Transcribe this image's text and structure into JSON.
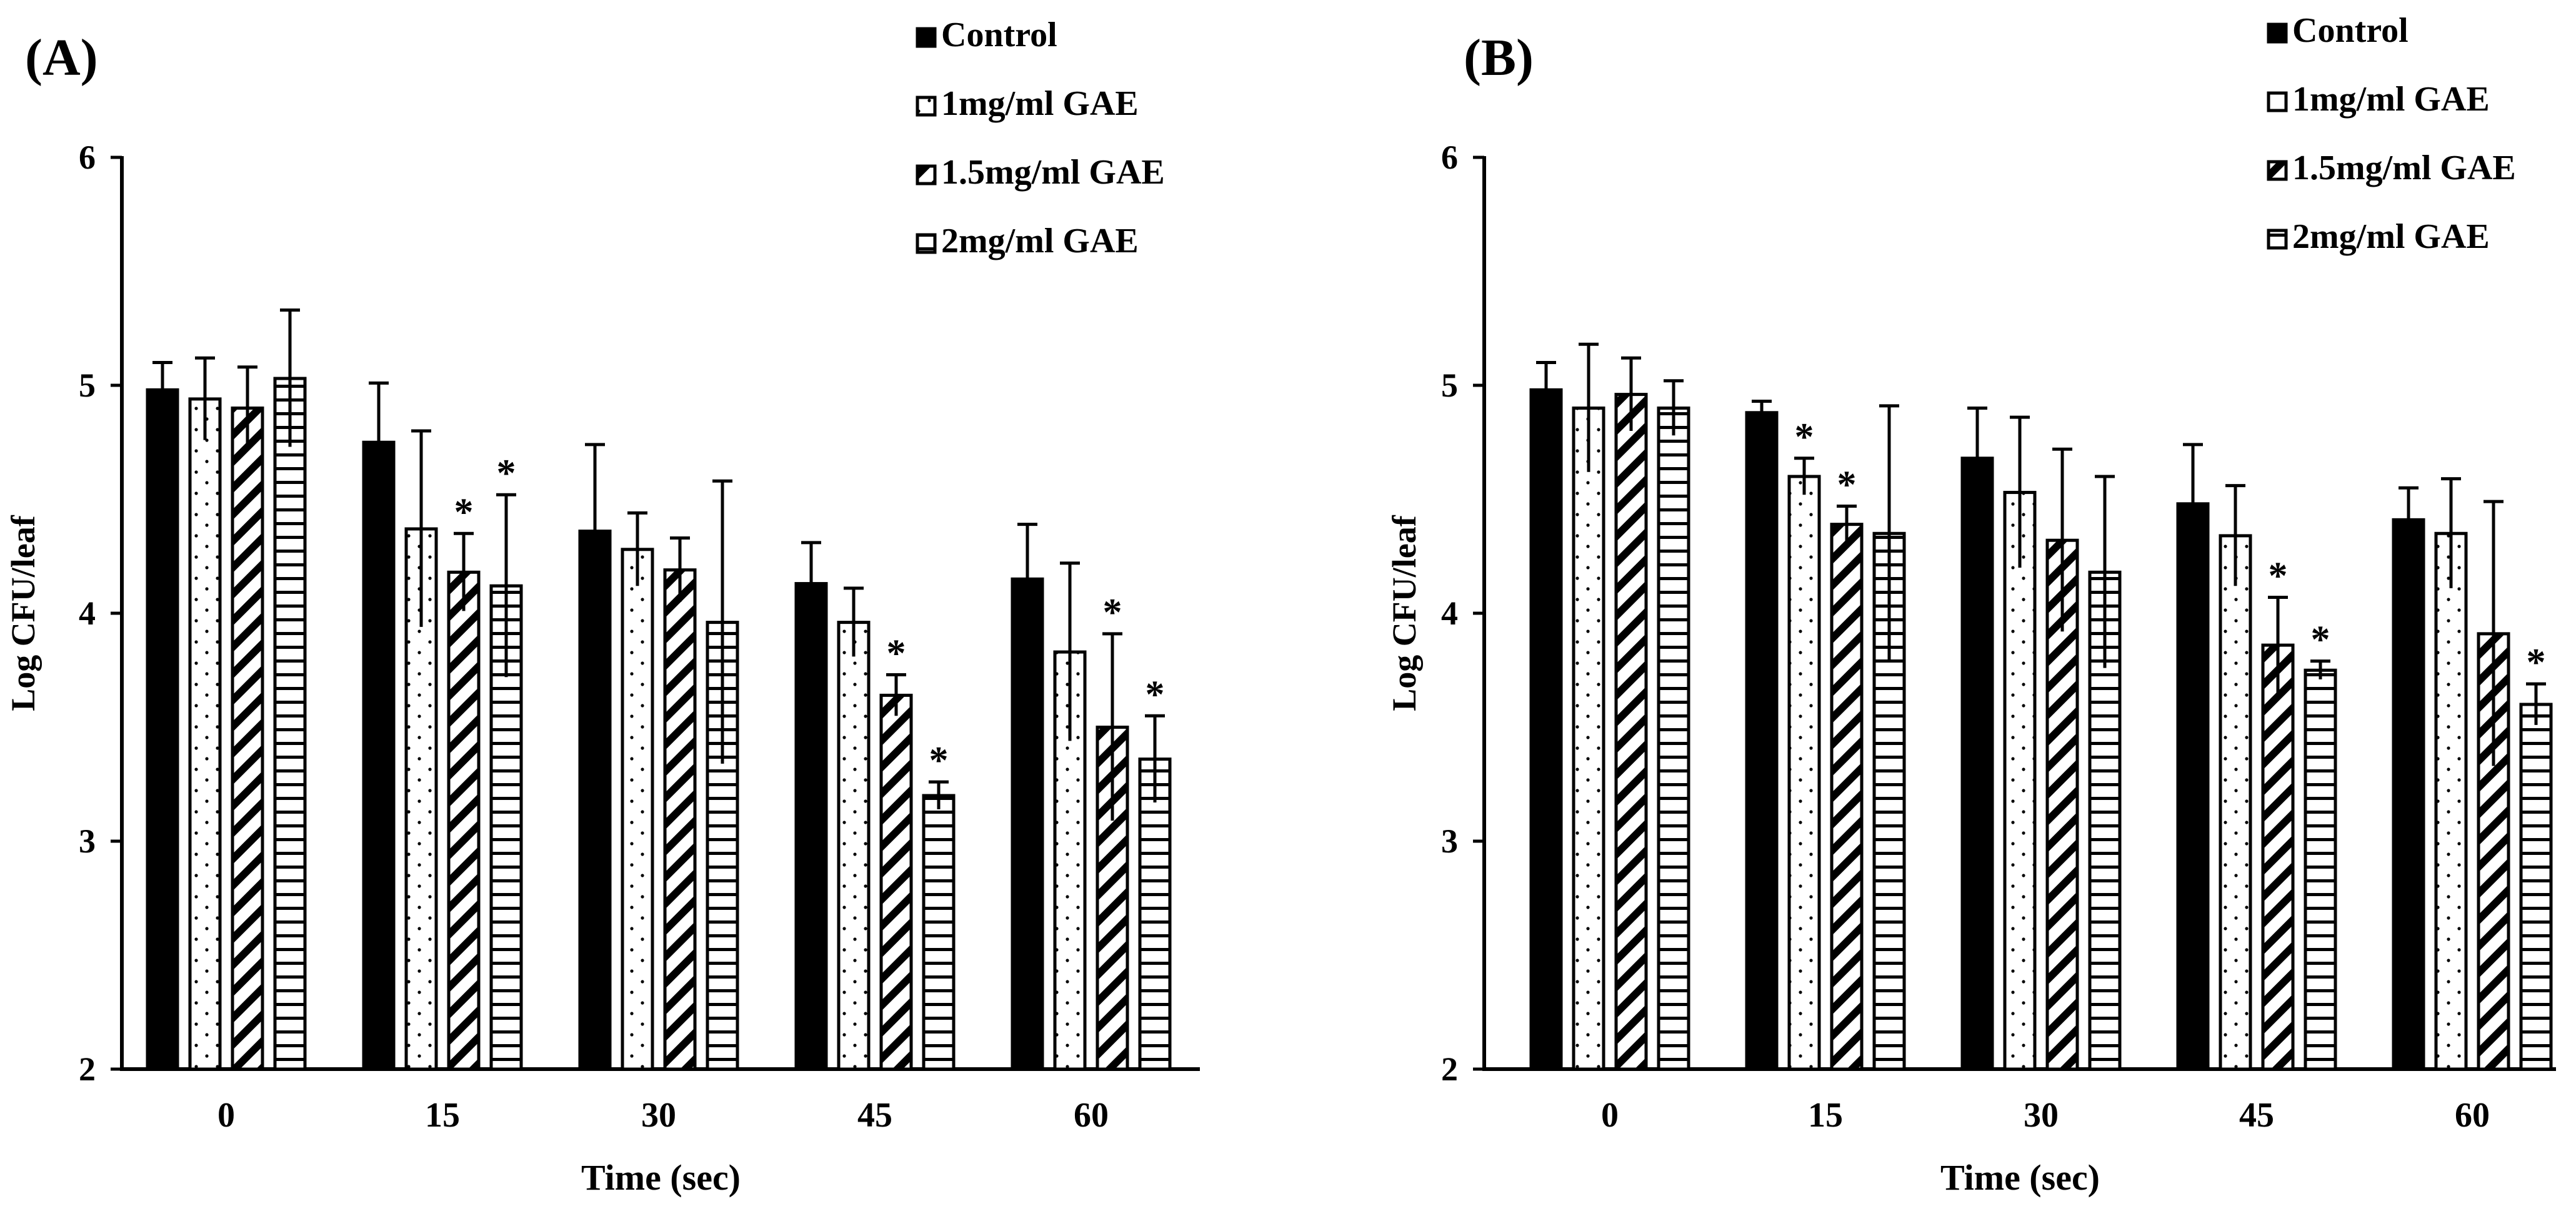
{
  "figure": {
    "panels": [
      {
        "label": "(A)"
      },
      {
        "label": "(B)"
      }
    ]
  },
  "colors": {
    "ink": "#000000",
    "background": "#ffffff"
  },
  "chart_data": [
    {
      "type": "bar",
      "panel": "(A)",
      "xlabel": "Time (sec)",
      "ylabel": "Log CFU/leaf",
      "ylim": [
        2,
        6
      ],
      "yticks": [
        2,
        3,
        4,
        5,
        6
      ],
      "categories": [
        "0",
        "15",
        "30",
        "45",
        "60"
      ],
      "legend_position": "top-right",
      "series": [
        {
          "name": "Control",
          "pattern": "solid",
          "values": [
            4.98,
            4.75,
            4.36,
            4.13,
            4.15
          ],
          "errors": [
            0.12,
            0.26,
            0.38,
            0.18,
            0.24
          ],
          "significant": [
            false,
            false,
            false,
            false,
            false
          ]
        },
        {
          "name": "1mg/ml GAE",
          "pattern": "dots",
          "values": [
            4.94,
            4.37,
            4.28,
            3.96,
            3.83
          ],
          "errors": [
            0.18,
            0.43,
            0.16,
            0.15,
            0.39
          ],
          "significant": [
            false,
            false,
            false,
            false,
            false
          ]
        },
        {
          "name": "1.5mg/ml GAE",
          "pattern": "diagonal",
          "values": [
            4.9,
            4.18,
            4.19,
            3.64,
            3.5
          ],
          "errors": [
            0.18,
            0.17,
            0.14,
            0.09,
            0.41
          ],
          "significant": [
            false,
            true,
            false,
            true,
            true
          ]
        },
        {
          "name": "2mg/ml GAE",
          "pattern": "horizontal",
          "values": [
            5.03,
            4.12,
            3.96,
            3.2,
            3.36
          ],
          "errors": [
            0.3,
            0.4,
            0.62,
            0.06,
            0.19
          ],
          "significant": [
            false,
            true,
            false,
            true,
            true
          ]
        }
      ],
      "significance_marker": "*"
    },
    {
      "type": "bar",
      "panel": "(B)",
      "xlabel": "Time (sec)",
      "ylabel": "Log CFU/leaf",
      "ylim": [
        2,
        6
      ],
      "yticks": [
        2,
        3,
        4,
        5,
        6
      ],
      "categories": [
        "0",
        "15",
        "30",
        "45",
        "60"
      ],
      "legend_position": "top-right",
      "series": [
        {
          "name": "Control",
          "pattern": "solid",
          "values": [
            4.98,
            4.88,
            4.68,
            4.48,
            4.41
          ],
          "errors": [
            0.12,
            0.05,
            0.22,
            0.26,
            0.14
          ],
          "significant": [
            false,
            false,
            false,
            false,
            false
          ]
        },
        {
          "name": "1mg/ml GAE",
          "pattern": "dots",
          "values": [
            4.9,
            4.6,
            4.53,
            4.34,
            4.35
          ],
          "errors": [
            0.28,
            0.08,
            0.33,
            0.22,
            0.24
          ],
          "significant": [
            false,
            true,
            false,
            false,
            false
          ]
        },
        {
          "name": "1.5mg/ml GAE",
          "pattern": "diagonal",
          "values": [
            4.96,
            4.39,
            4.32,
            3.86,
            3.91
          ],
          "errors": [
            0.16,
            0.08,
            0.4,
            0.21,
            0.58
          ],
          "significant": [
            false,
            true,
            false,
            true,
            false
          ]
        },
        {
          "name": "2mg/ml GAE",
          "pattern": "horizontal",
          "values": [
            4.9,
            4.35,
            4.18,
            3.75,
            3.6
          ],
          "errors": [
            0.12,
            0.56,
            0.42,
            0.04,
            0.09
          ],
          "significant": [
            false,
            false,
            false,
            true,
            true
          ]
        }
      ],
      "significance_marker": "*"
    }
  ]
}
